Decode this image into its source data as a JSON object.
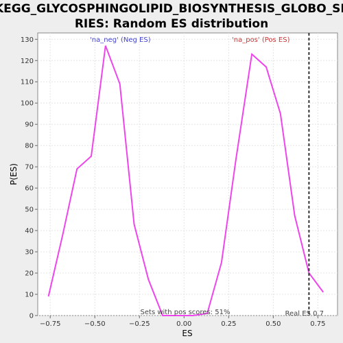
{
  "chart_data": {
    "type": "line",
    "title_line1": "KEGG_GLYCOSPHINGOLIPID_BIOSYNTHESIS_GLOBO_SE",
    "title_line2": "RIES: Random ES distribution",
    "xlabel": "ES",
    "ylabel": "P(ES)",
    "xlim": [
      -0.82,
      0.86
    ],
    "ylim": [
      0,
      133
    ],
    "x_ticks": [
      -0.75,
      -0.5,
      -0.25,
      0.0,
      0.25,
      0.5,
      0.75
    ],
    "x_tick_labels": [
      "−0.75",
      "−0.50",
      "−0.25",
      "0.00",
      "0.25",
      "0.50",
      "0.75"
    ],
    "y_ticks": [
      0,
      10,
      20,
      30,
      40,
      50,
      60,
      70,
      80,
      90,
      100,
      110,
      120,
      130
    ],
    "grid": true,
    "line_color": "#ee44ee",
    "series": [
      {
        "x": [
          -0.76,
          -0.68,
          -0.6,
          -0.52,
          -0.44,
          -0.36,
          -0.28,
          -0.2,
          -0.12,
          -0.04,
          0.05,
          0.13,
          0.21,
          0.29,
          0.38,
          0.46,
          0.54,
          0.62,
          0.7,
          0.78
        ],
        "y": [
          9,
          38,
          69,
          75,
          127,
          109,
          43,
          17,
          0,
          0,
          0,
          1,
          25,
          73,
          123,
          117,
          95,
          47,
          20,
          11
        ]
      }
    ],
    "real_es": 0.7,
    "real_es_label": "Real ES 0.7",
    "neg_label": "'na_neg' (Neg ES)",
    "pos_label": "'na_pos' (Pos ES)",
    "neg_color": "#4444cc",
    "pos_color": "#cc3333",
    "pos_scores_label": "Sets with pos scores: 51%"
  }
}
